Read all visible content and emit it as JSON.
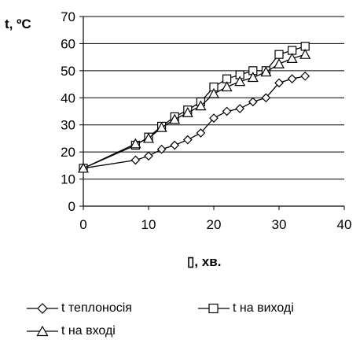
{
  "chart_data": {
    "type": "line",
    "ylabel": "t, ºC",
    "xlabel": "▯, хв.",
    "xlim": [
      0,
      40
    ],
    "ylim": [
      0,
      70
    ],
    "xticks": [
      0,
      10,
      20,
      30,
      40
    ],
    "yticks": [
      0,
      10,
      20,
      30,
      40,
      50,
      60,
      70
    ],
    "grid": "horizontal",
    "legend_position": "bottom",
    "series": [
      {
        "name": "t теплоносія",
        "marker": "diamond",
        "x": [
          0,
          8,
          10,
          12,
          14,
          16,
          18,
          20,
          22,
          24,
          26,
          28,
          30,
          32,
          34
        ],
        "y": [
          14,
          17,
          18.5,
          21,
          22.5,
          24.5,
          27,
          32.5,
          35,
          36,
          38.5,
          40,
          45.5,
          47,
          48
        ]
      },
      {
        "name": "t на виході",
        "marker": "square",
        "x": [
          0,
          8,
          10,
          12,
          14,
          16,
          18,
          20,
          22,
          24,
          26,
          28,
          30,
          32,
          34
        ],
        "y": [
          14,
          22.5,
          25.5,
          29.5,
          33,
          35.5,
          38.5,
          44,
          47,
          48.5,
          50,
          50,
          56,
          57.5,
          59
        ]
      },
      {
        "name": "t на вході",
        "marker": "triangle",
        "x": [
          0,
          8,
          10,
          12,
          14,
          16,
          18,
          20,
          22,
          24,
          26,
          28,
          30,
          32,
          34
        ],
        "y": [
          14,
          23,
          25,
          29,
          32,
          34.5,
          37,
          41.5,
          44,
          46,
          47.5,
          49.5,
          52.5,
          54.5,
          56
        ]
      }
    ]
  }
}
